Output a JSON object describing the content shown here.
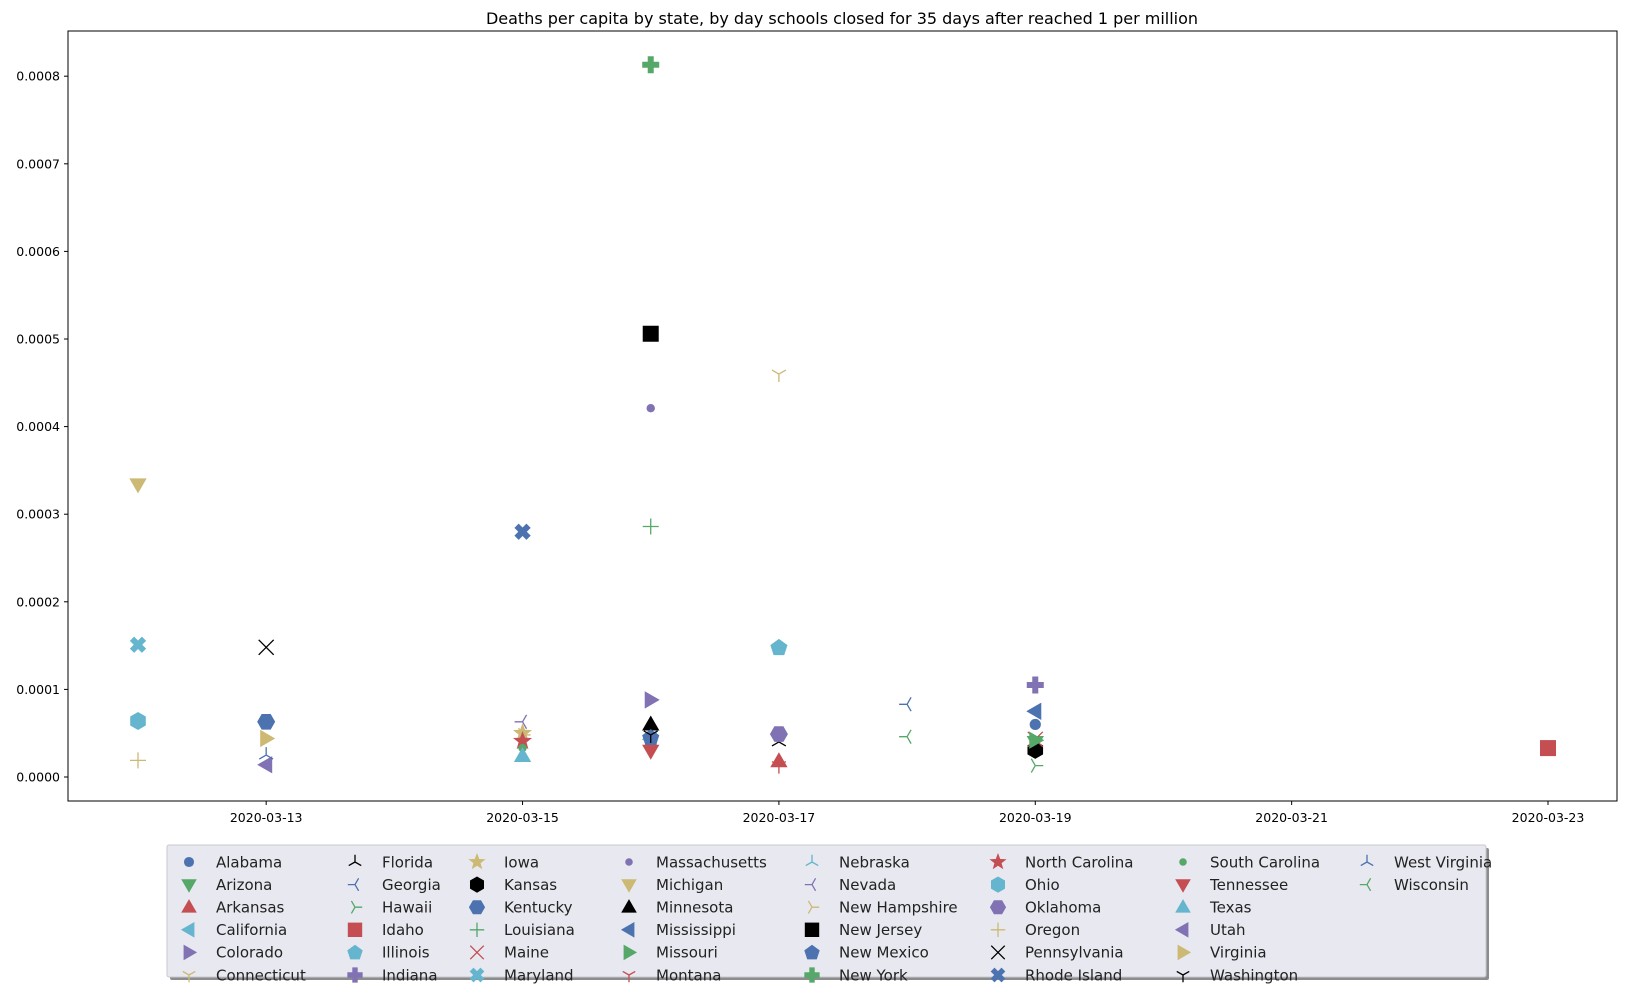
{
  "chart_data": {
    "type": "scatter",
    "title": "Deaths per capita by state, by day schools closed for 35 days after reached 1 per million",
    "xlabel": "",
    "ylabel": "",
    "x_axis_type": "date",
    "xlim": [
      "2020-03-12",
      "2020-03-23"
    ],
    "ylim": [
      0,
      0.00085
    ],
    "x_ticks": [
      "2020-03-13",
      "2020-03-15",
      "2020-03-17",
      "2020-03-19",
      "2020-03-21",
      "2020-03-23"
    ],
    "y_ticks": [
      0.0,
      0.0001,
      0.0002,
      0.0003,
      0.0004,
      0.0005,
      0.0006,
      0.0007,
      0.0008
    ],
    "y_tick_labels": [
      "0.0000",
      "0.0001",
      "0.0002",
      "0.0003",
      "0.0004",
      "0.0005",
      "0.0006",
      "0.0007",
      "0.0008"
    ],
    "grid": false,
    "legend_placement": "bottom-center",
    "legend_columns": 8,
    "series": [
      {
        "name": "Alabama",
        "marker": "circle",
        "color": "#4c72b0",
        "x": "2020-03-19",
        "y": 6e-05
      },
      {
        "name": "Arizona",
        "marker": "triangle-down",
        "color": "#55a868",
        "x": "2020-03-19",
        "y": 4e-05
      },
      {
        "name": "Arkansas",
        "marker": "triangle-up",
        "color": "#c44e52",
        "x": "2020-03-17",
        "y": 1.8e-05
      },
      {
        "name": "California",
        "marker": "triangle-left",
        "color": "#64b5cd",
        "x": "2020-03-16",
        "y": 4.3e-05
      },
      {
        "name": "Colorado",
        "marker": "triangle-right",
        "color": "#8172b3",
        "x": "2020-03-16",
        "y": 8.8e-05
      },
      {
        "name": "Connecticut",
        "marker": "tri-down",
        "color": "#ccb974",
        "x": "2020-03-17",
        "y": 0.00046
      },
      {
        "name": "Florida",
        "marker": "tri-up",
        "color": "#000000",
        "x": "2020-03-17",
        "y": 4e-05
      },
      {
        "name": "Georgia",
        "marker": "tri-left",
        "color": "#4c72b0",
        "x": "2020-03-18",
        "y": 8.3e-05
      },
      {
        "name": "Hawaii",
        "marker": "tri-right",
        "color": "#55a868",
        "x": "2020-03-19",
        "y": 1.3e-05
      },
      {
        "name": "Idaho",
        "marker": "square",
        "color": "#c44e52",
        "x": "2020-03-23",
        "y": 3.3e-05
      },
      {
        "name": "Illinois",
        "marker": "pentagon",
        "color": "#64b5cd",
        "x": "2020-03-17",
        "y": 0.000148
      },
      {
        "name": "Indiana",
        "marker": "plus-filled",
        "color": "#8172b3",
        "x": "2020-03-19",
        "y": 0.000105
      },
      {
        "name": "Iowa",
        "marker": "star",
        "color": "#ccb974",
        "x": "2020-03-15",
        "y": 5e-05
      },
      {
        "name": "Kansas",
        "marker": "hexagon",
        "color": "#000000",
        "x": "2020-03-19",
        "y": 3.1e-05
      },
      {
        "name": "Kentucky",
        "marker": "hexagon-flat",
        "color": "#4c72b0",
        "x": "2020-03-13",
        "y": 6.3e-05
      },
      {
        "name": "Louisiana",
        "marker": "plus",
        "color": "#55a868",
        "x": "2020-03-16",
        "y": 0.000286
      },
      {
        "name": "Maine",
        "marker": "x",
        "color": "#c44e52",
        "x": "2020-03-19",
        "y": 4.3e-05
      },
      {
        "name": "Maryland",
        "marker": "x-filled",
        "color": "#64b5cd",
        "x": "2020-03-12",
        "y": 0.000151
      },
      {
        "name": "Massachusetts",
        "marker": "circle-small",
        "color": "#8172b3",
        "x": "2020-03-16",
        "y": 0.000421
      },
      {
        "name": "Michigan",
        "marker": "triangle-down",
        "color": "#ccb974",
        "x": "2020-03-12",
        "y": 0.000334
      },
      {
        "name": "Minnesota",
        "marker": "triangle-up",
        "color": "#000000",
        "x": "2020-03-16",
        "y": 6e-05
      },
      {
        "name": "Mississippi",
        "marker": "triangle-left",
        "color": "#4c72b0",
        "x": "2020-03-19",
        "y": 7.5e-05
      },
      {
        "name": "Missouri",
        "marker": "triangle-right",
        "color": "#55a868",
        "x": "2020-03-19",
        "y": 4.2e-05
      },
      {
        "name": "Montana",
        "marker": "tri-down",
        "color": "#c44e52",
        "x": "2020-03-17",
        "y": 1.3e-05
      },
      {
        "name": "Nebraska",
        "marker": "tri-up",
        "color": "#64b5cd",
        "x": "2020-03-16",
        "y": 4e-05
      },
      {
        "name": "Nevada",
        "marker": "tri-left",
        "color": "#8172b3",
        "x": "2020-03-15",
        "y": 6.3e-05
      },
      {
        "name": "New Hampshire",
        "marker": "tri-right",
        "color": "#ccb974",
        "x": "2020-03-15",
        "y": 4.8e-05
      },
      {
        "name": "New Jersey",
        "marker": "square",
        "color": "#000000",
        "x": "2020-03-16",
        "y": 0.000506
      },
      {
        "name": "New Mexico",
        "marker": "pentagon",
        "color": "#4c72b0",
        "x": "2020-03-16",
        "y": 4.5e-05
      },
      {
        "name": "New York",
        "marker": "plus-filled",
        "color": "#55a868",
        "x": "2020-03-16",
        "y": 0.000813
      },
      {
        "name": "North Carolina",
        "marker": "star",
        "color": "#c44e52",
        "x": "2020-03-15",
        "y": 4.1e-05
      },
      {
        "name": "Ohio",
        "marker": "hexagon",
        "color": "#64b5cd",
        "x": "2020-03-12",
        "y": 6.4e-05
      },
      {
        "name": "Oklahoma",
        "marker": "hexagon-flat",
        "color": "#8172b3",
        "x": "2020-03-17",
        "y": 4.9e-05
      },
      {
        "name": "Oregon",
        "marker": "plus",
        "color": "#ccb974",
        "x": "2020-03-12",
        "y": 1.9e-05
      },
      {
        "name": "Pennsylvania",
        "marker": "x",
        "color": "#000000",
        "x": "2020-03-13",
        "y": 0.000148
      },
      {
        "name": "Rhode Island",
        "marker": "x-filled",
        "color": "#4c72b0",
        "x": "2020-03-15",
        "y": 0.00028
      },
      {
        "name": "South Carolina",
        "marker": "circle-small",
        "color": "#55a868",
        "x": "2020-03-15",
        "y": 3.3e-05
      },
      {
        "name": "Tennessee",
        "marker": "triangle-down",
        "color": "#c44e52",
        "x": "2020-03-16",
        "y": 3e-05
      },
      {
        "name": "Texas",
        "marker": "triangle-up",
        "color": "#64b5cd",
        "x": "2020-03-15",
        "y": 2.4e-05
      },
      {
        "name": "Utah",
        "marker": "triangle-left",
        "color": "#8172b3",
        "x": "2020-03-13",
        "y": 1.4e-05
      },
      {
        "name": "Virginia",
        "marker": "triangle-right",
        "color": "#ccb974",
        "x": "2020-03-13",
        "y": 4.4e-05
      },
      {
        "name": "Washington",
        "marker": "tri-down",
        "color": "#000000",
        "x": "2020-03-16",
        "y": 4.8e-05
      },
      {
        "name": "West Virginia",
        "marker": "tri-up",
        "color": "#4c72b0",
        "x": "2020-03-13",
        "y": 2.5e-05
      },
      {
        "name": "Wisconsin",
        "marker": "tri-left",
        "color": "#55a868",
        "x": "2020-03-18",
        "y": 4.6e-05
      }
    ]
  }
}
